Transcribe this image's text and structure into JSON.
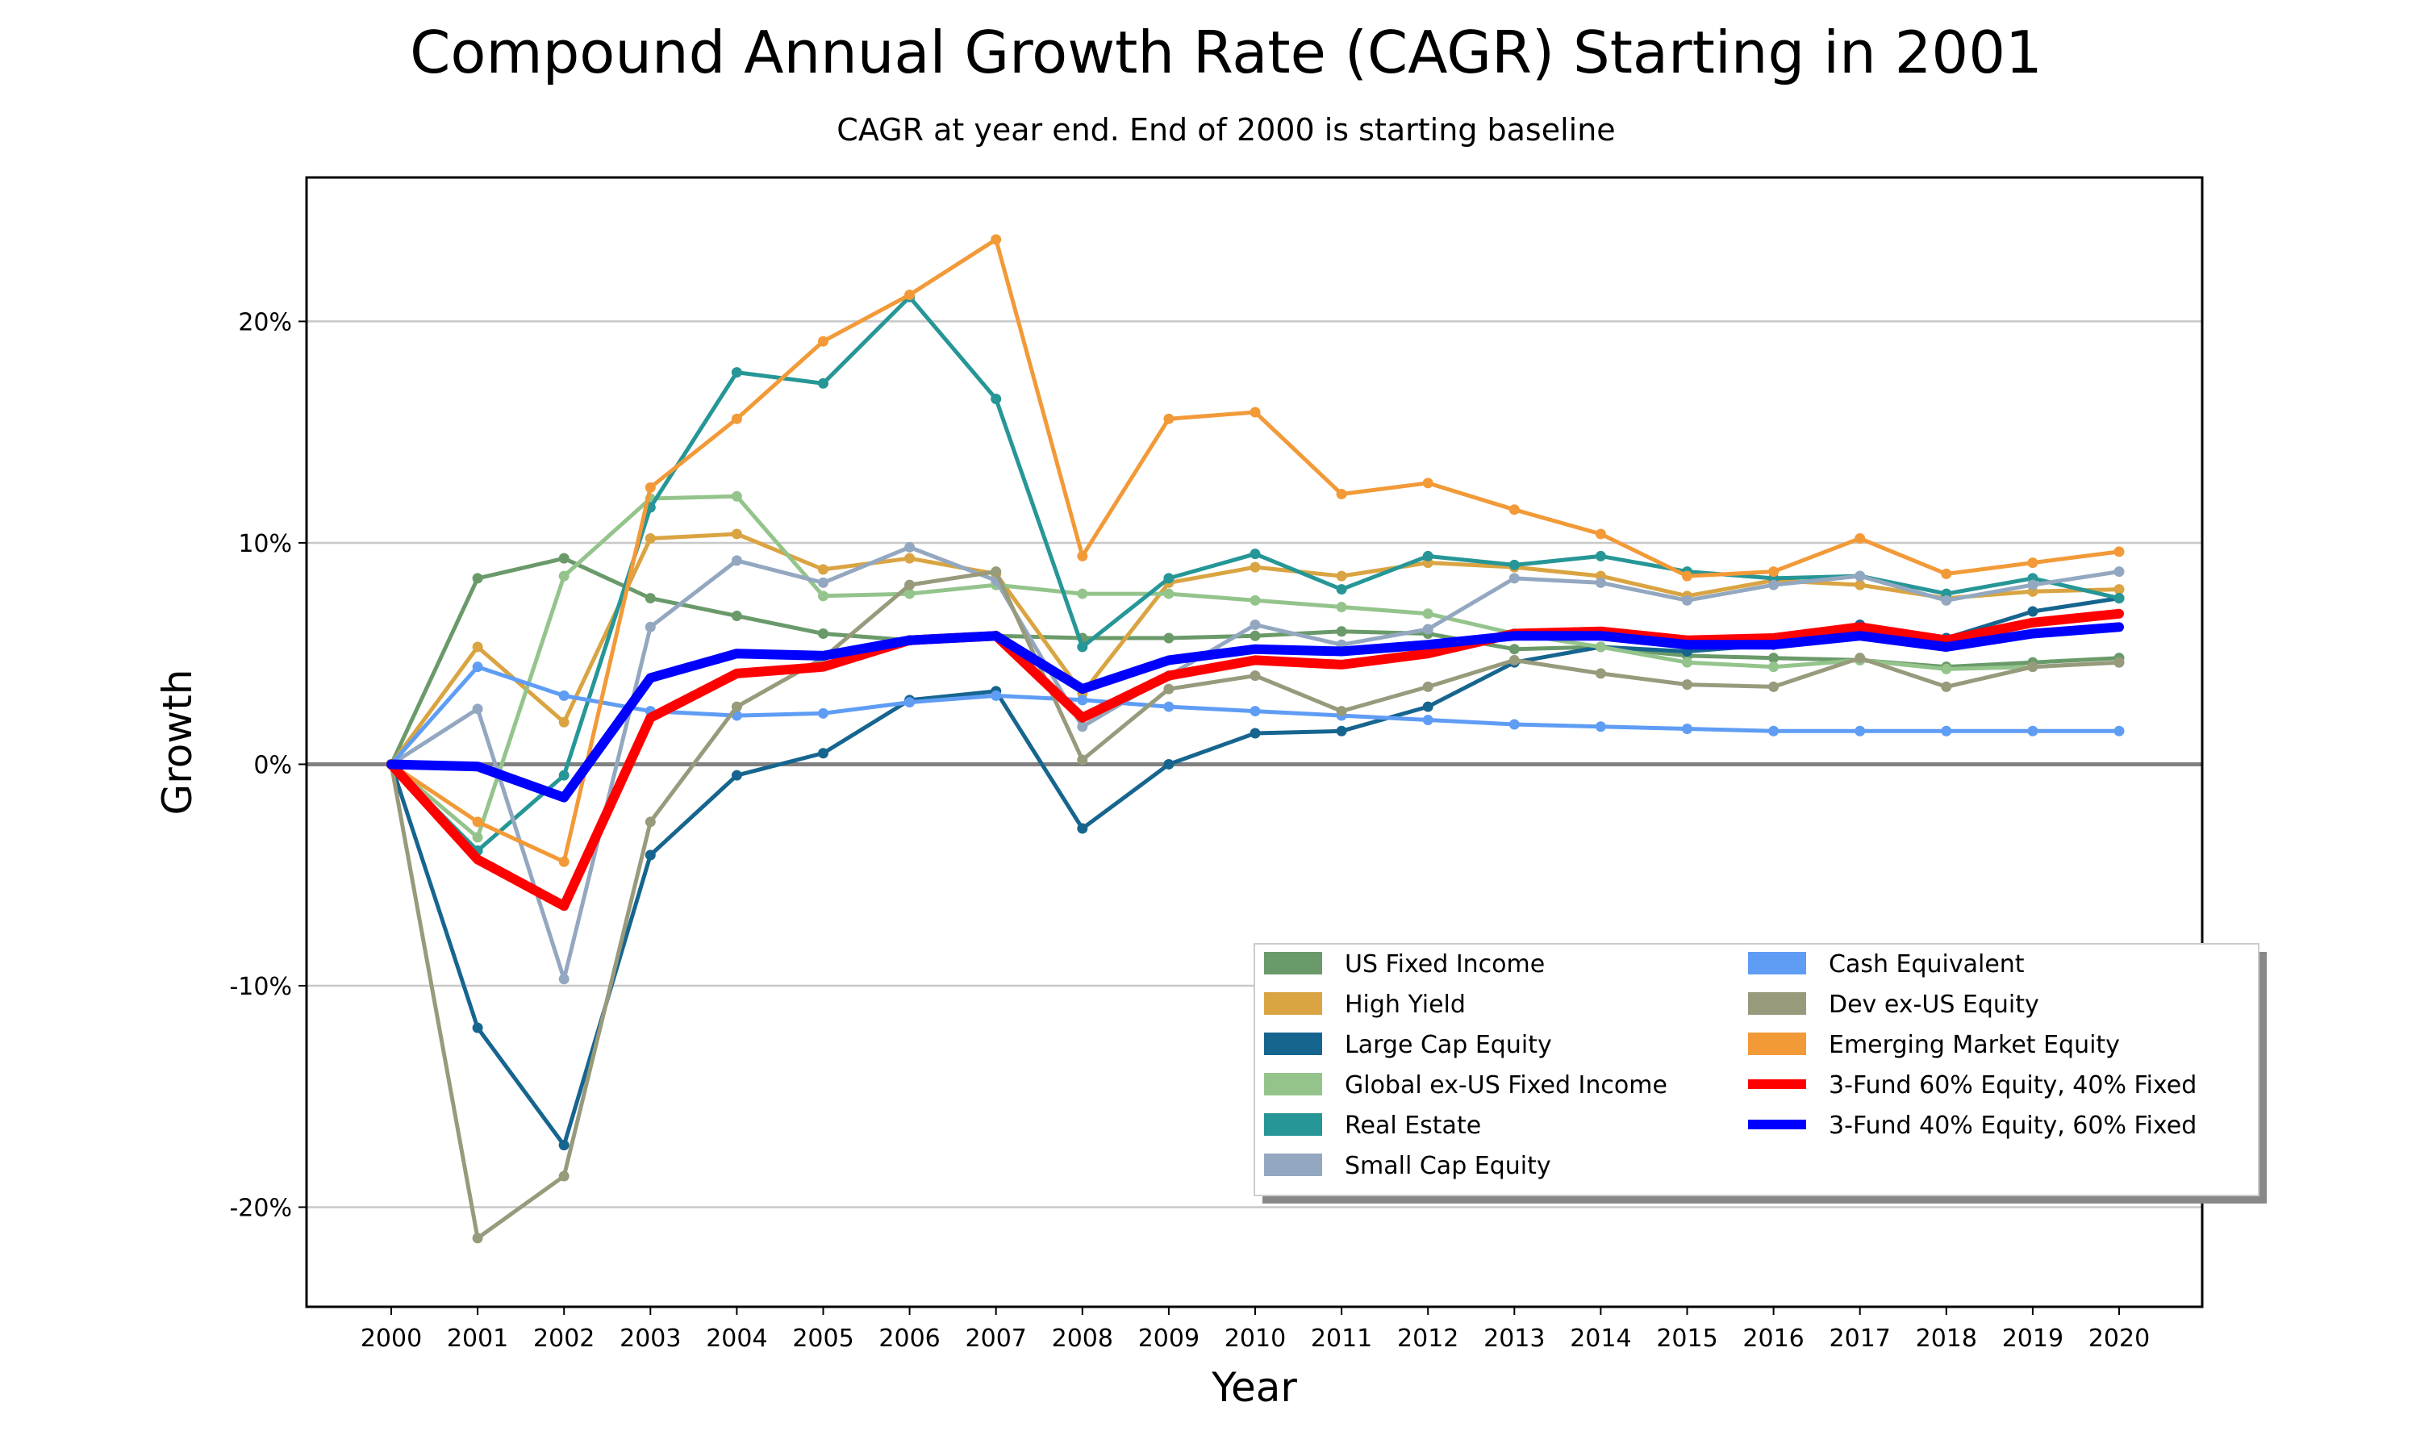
{
  "chart_data": {
    "type": "line",
    "title": "Compound Annual Growth Rate (CAGR) Starting in 2001",
    "subtitle": "CAGR at year end. End of 2000 is starting baseline",
    "xlabel": "Year",
    "ylabel": "Growth",
    "x": [
      2000,
      2001,
      2002,
      2003,
      2004,
      2005,
      2006,
      2007,
      2008,
      2009,
      2010,
      2011,
      2012,
      2013,
      2014,
      2015,
      2016,
      2017,
      2018,
      2019,
      2020
    ],
    "x_tick_labels": [
      "2000",
      "2001",
      "2002",
      "2003",
      "2004",
      "2005",
      "2006",
      "2007",
      "2008",
      "2009",
      "2010",
      "2011",
      "2012",
      "2013",
      "2014",
      "2015",
      "2016",
      "2017",
      "2018",
      "2019",
      "2020"
    ],
    "y_ticks": [
      -20,
      -10,
      0,
      10,
      20
    ],
    "y_tick_labels": [
      "-20%",
      "-10%",
      "0%",
      "10%",
      "20%"
    ],
    "ylim": [
      -24.5,
      26.5
    ],
    "grid": "horizontal",
    "legend_placement": "lower-right",
    "series": [
      {
        "name": "US Fixed Income",
        "color": "#6a9a6a",
        "bold": false,
        "values": [
          0,
          8.4,
          9.3,
          7.5,
          6.7,
          5.9,
          5.6,
          5.8,
          5.7,
          5.7,
          5.8,
          6.0,
          5.9,
          5.2,
          5.3,
          4.9,
          4.8,
          4.7,
          4.4,
          4.6,
          4.8
        ]
      },
      {
        "name": "High Yield",
        "color": "#d9a441",
        "bold": false,
        "values": [
          0,
          5.3,
          1.9,
          10.2,
          10.4,
          8.8,
          9.3,
          8.6,
          3.2,
          8.2,
          8.9,
          8.5,
          9.1,
          8.9,
          8.5,
          7.6,
          8.3,
          8.1,
          7.5,
          7.8,
          7.9
        ]
      },
      {
        "name": "Large Cap Equity",
        "color": "#16658f",
        "bold": false,
        "values": [
          0,
          -11.9,
          -17.2,
          -4.1,
          -0.5,
          0.5,
          2.9,
          3.3,
          -2.9,
          0.0,
          1.4,
          1.5,
          2.6,
          4.6,
          5.3,
          5.1,
          5.4,
          6.3,
          5.7,
          6.9,
          7.5
        ]
      },
      {
        "name": "Global ex-US Fixed Income",
        "color": "#94c48c",
        "bold": false,
        "values": [
          0,
          -3.3,
          8.5,
          12.0,
          12.1,
          7.6,
          7.7,
          8.1,
          7.7,
          7.7,
          7.4,
          7.1,
          6.8,
          5.9,
          5.3,
          4.6,
          4.4,
          4.7,
          4.3,
          4.4,
          4.6
        ]
      },
      {
        "name": "Real Estate",
        "color": "#269696",
        "bold": false,
        "values": [
          0,
          -3.9,
          -0.5,
          11.6,
          17.7,
          17.2,
          21.1,
          16.5,
          5.3,
          8.4,
          9.5,
          7.9,
          9.4,
          9.0,
          9.4,
          8.7,
          8.4,
          8.5,
          7.7,
          8.4,
          7.5
        ]
      },
      {
        "name": "Small Cap Equity",
        "color": "#93a8c0",
        "bold": false,
        "values": [
          0,
          2.5,
          -9.7,
          6.2,
          9.2,
          8.2,
          9.8,
          8.3,
          1.7,
          4.0,
          6.3,
          5.4,
          6.1,
          8.4,
          8.2,
          7.4,
          8.1,
          8.5,
          7.4,
          8.1,
          8.7
        ]
      },
      {
        "name": "Cash Equivalent",
        "color": "#5f9df5",
        "bold": false,
        "values": [
          0,
          4.4,
          3.1,
          2.4,
          2.2,
          2.3,
          2.8,
          3.1,
          2.9,
          2.6,
          2.4,
          2.2,
          2.0,
          1.8,
          1.7,
          1.6,
          1.5,
          1.5,
          1.5,
          1.5,
          1.5
        ]
      },
      {
        "name": "Dev ex-US Equity",
        "color": "#989a7c",
        "bold": false,
        "values": [
          0,
          -21.4,
          -18.6,
          -2.6,
          2.6,
          4.8,
          8.1,
          8.7,
          0.2,
          3.4,
          4.0,
          2.4,
          3.5,
          4.7,
          4.1,
          3.6,
          3.5,
          4.8,
          3.5,
          4.4,
          4.6
        ]
      },
      {
        "name": "Emerging Market Equity",
        "color": "#f29a38",
        "bold": false,
        "values": [
          0,
          -2.6,
          -4.4,
          12.5,
          15.6,
          19.1,
          21.2,
          23.7,
          9.4,
          15.6,
          15.9,
          12.2,
          12.7,
          11.5,
          10.4,
          8.5,
          8.7,
          10.2,
          8.6,
          9.1,
          9.6
        ]
      },
      {
        "name": "3-Fund 60% Equity, 40% Fixed",
        "color": "#ff0000",
        "bold": true,
        "values": [
          0,
          -4.3,
          -6.4,
          2.1,
          4.1,
          4.4,
          5.6,
          5.8,
          2.1,
          4.0,
          4.7,
          4.5,
          5.0,
          5.9,
          6.0,
          5.6,
          5.7,
          6.2,
          5.6,
          6.4,
          6.8
        ]
      },
      {
        "name": "3-Fund 40% Equity, 60% Fixed",
        "color": "#0000ff",
        "bold": true,
        "values": [
          0,
          -0.1,
          -1.5,
          3.9,
          5.0,
          4.9,
          5.6,
          5.8,
          3.4,
          4.7,
          5.2,
          5.1,
          5.4,
          5.8,
          5.8,
          5.4,
          5.4,
          5.8,
          5.3,
          5.9,
          6.2
        ]
      }
    ]
  }
}
